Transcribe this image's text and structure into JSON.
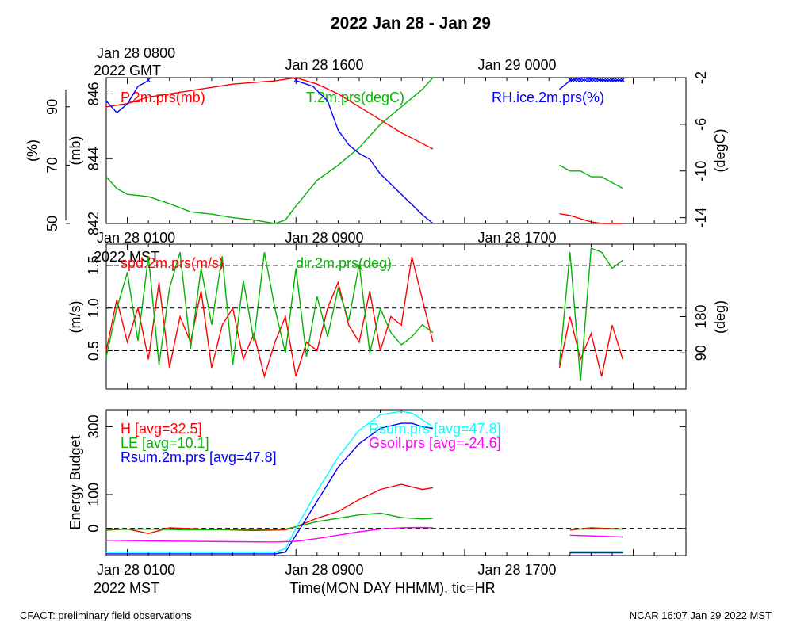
{
  "title": "2022 Jan 28 - Jan 29",
  "footer_left": "CFACT: preliminary field observations",
  "footer_right": "NCAR 16:07 Jan 29 2022 MST",
  "xlabel": "Time(MON DAY HHMM), tic=HR",
  "top_axis_labels": {
    "gmt_ticks": [
      "Jan 28 0800",
      "Jan 28 1600",
      "Jan 29 0000"
    ],
    "gmt_year": "2022 GMT"
  },
  "mst_axis_labels": {
    "ticks": [
      "Jan 28 0100",
      "Jan 28 0900",
      "Jan 28 1700"
    ],
    "year": "2022 MST"
  },
  "colors": {
    "red": "#ff0000",
    "green": "#00b400",
    "blue": "#0000ff",
    "cyan": "#00ffff",
    "magenta": "#ff00ff"
  },
  "chart_data": [
    {
      "type": "line",
      "panel": "pressure-temperature-rh",
      "x_unit": "hours since Jan 28 0000 MST",
      "xlim": [
        0,
        27.5
      ],
      "axes": [
        {
          "label": "(%)",
          "side": "left-outer",
          "ticks": [
            50,
            70,
            90
          ],
          "ylim": [
            50,
            100
          ]
        },
        {
          "label": "(mb)",
          "side": "left-inner",
          "ticks": [
            842,
            844,
            846
          ],
          "ylim": [
            842,
            846.5
          ]
        },
        {
          "label": "(degC)",
          "side": "right",
          "ticks": [
            -14,
            -10,
            -6,
            -2
          ],
          "ylim": [
            -14.5,
            -2
          ]
        }
      ],
      "series": [
        {
          "name": "P.2m.prs(mb)",
          "color": "#ff0000",
          "axis": 1,
          "x": [
            0,
            1,
            2,
            3,
            4,
            5,
            6,
            7,
            8,
            9,
            9.5,
            10,
            11,
            12,
            13,
            14,
            15.5,
            21.5,
            22,
            22.5,
            23,
            23.5,
            24,
            24.5
          ],
          "y": [
            845.6,
            845.7,
            845.9,
            846.0,
            846.1,
            846.2,
            846.3,
            846.35,
            846.4,
            846.5,
            846.4,
            846.3,
            846.0,
            845.6,
            845.2,
            844.8,
            844.3,
            842.3,
            842.25,
            842.15,
            842.05,
            841.95,
            841.85,
            841.8
          ]
        },
        {
          "name": "T.2m.prs(degC)",
          "color": "#00b400",
          "axis": 2,
          "x": [
            0,
            0.5,
            1,
            2,
            3,
            4,
            5,
            6,
            7,
            8,
            8.5,
            9,
            10,
            11,
            12,
            13,
            14,
            15,
            15.5,
            21.5,
            22,
            22.5,
            23,
            23.5,
            24,
            24.5
          ],
          "y": [
            -10.5,
            -11.5,
            -12,
            -12.2,
            -12.8,
            -13.5,
            -13.7,
            -14.0,
            -14.2,
            -14.5,
            -14.2,
            -13,
            -10.8,
            -9.5,
            -8,
            -6,
            -4.5,
            -3,
            -2,
            -9.5,
            -10,
            -10,
            -10.5,
            -10.5,
            -11,
            -11.5
          ]
        },
        {
          "name": "RH.ice.2m.prs(%)",
          "color": "#0000ff",
          "axis": 0,
          "x": [
            0,
            0.5,
            1,
            1.5,
            2,
            9,
            9.8,
            10.5,
            11,
            11.5,
            12,
            12.5,
            13,
            14,
            15,
            15.5,
            21.5,
            22,
            22.5,
            23,
            23.5,
            24,
            24.5
          ],
          "y": [
            92,
            88,
            91,
            97,
            99,
            99,
            97,
            92,
            82,
            77,
            74,
            72,
            67,
            60,
            53,
            50,
            96,
            99,
            100,
            100,
            99,
            99,
            99
          ]
        }
      ],
      "legend": [
        "P.2m.prs(mb)",
        "T.2m.prs(degC)",
        "RH.ice.2m.prs(%)"
      ]
    },
    {
      "type": "line",
      "panel": "wind",
      "x_unit": "hours since Jan 28 0000 MST",
      "xlim": [
        0,
        27.5
      ],
      "axes": [
        {
          "label": "(m/s)",
          "side": "left",
          "ticks": [
            0.5,
            1.0,
            1.5
          ],
          "ylim": [
            0.05,
            1.75
          ]
        },
        {
          "label": "(deg)",
          "side": "right",
          "ticks": [
            90,
            180
          ],
          "ylim": [
            0,
            360
          ]
        }
      ],
      "reference_lines_ms": [
        0.5,
        1.0,
        1.5
      ],
      "series": [
        {
          "name": "spd.2m.prs(m/s)",
          "color": "#ff0000",
          "axis": 0,
          "x": [
            0,
            0.5,
            1,
            1.5,
            2,
            2.5,
            3,
            3.5,
            4,
            4.5,
            5,
            5.5,
            6,
            6.5,
            7,
            7.5,
            8,
            8.5,
            9,
            9.5,
            10,
            10.5,
            11,
            11.5,
            12,
            12.5,
            13,
            13.5,
            14,
            14.5,
            15,
            15.5,
            21.5,
            22,
            22.5,
            23,
            23.5,
            24,
            24.5
          ],
          "y": [
            0.5,
            1.1,
            0.6,
            1.0,
            0.4,
            1.3,
            0.3,
            0.9,
            0.6,
            1.2,
            0.3,
            0.8,
            1.0,
            0.4,
            0.7,
            0.2,
            0.6,
            0.9,
            0.2,
            0.6,
            0.5,
            1.0,
            1.3,
            0.8,
            0.6,
            1.2,
            0.5,
            0.9,
            0.8,
            1.6,
            1.1,
            0.6,
            0.3,
            0.9,
            0.4,
            0.7,
            0.2,
            0.8,
            0.4
          ]
        },
        {
          "name": "dir.2m.prs(deg)",
          "color": "#00b400",
          "axis": 1,
          "x": [
            0,
            0.5,
            1,
            1.5,
            2,
            2.5,
            3,
            3.5,
            4,
            4.5,
            5,
            5.5,
            6,
            6.5,
            7,
            7.5,
            8,
            8.5,
            9,
            9.5,
            10,
            10.5,
            11,
            11.5,
            12,
            12.5,
            13,
            13.5,
            14,
            14.5,
            15,
            15.5,
            21.5,
            22,
            22.5,
            23,
            23.5,
            24,
            24.5
          ],
          "y": [
            80,
            200,
            290,
            120,
            330,
            60,
            250,
            340,
            100,
            300,
            160,
            330,
            60,
            270,
            120,
            340,
            200,
            90,
            300,
            80,
            230,
            130,
            250,
            170,
            310,
            90,
            200,
            140,
            110,
            130,
            160,
            140,
            60,
            340,
            20,
            350,
            340,
            300,
            320
          ]
        }
      ],
      "legend": [
        "spd.2m.prs(m/s)",
        "dir.2m.prs(deg)"
      ]
    },
    {
      "type": "line",
      "panel": "energy-budget",
      "ylabel": "Energy Budget",
      "x_unit": "hours since Jan 28 0000 MST",
      "xlim": [
        0,
        27.5
      ],
      "ylim": [
        -80,
        350
      ],
      "yticks": [
        0,
        100,
        300
      ],
      "zero_line": true,
      "series": [
        {
          "name": "H",
          "avg_label": "H [avg=32.5]",
          "color": "#ff0000",
          "x": [
            0,
            1,
            2,
            3,
            5,
            7,
            8.5,
            9,
            10,
            11,
            12,
            13,
            14,
            15,
            15.5,
            22,
            23,
            24.5
          ],
          "y": [
            -5,
            -2,
            -15,
            2,
            -3,
            -6,
            -4,
            5,
            30,
            50,
            85,
            115,
            130,
            115,
            120,
            -5,
            2,
            -2
          ]
        },
        {
          "name": "LE",
          "avg_label": "LE [avg=10.1]",
          "color": "#00b400",
          "x": [
            0,
            2,
            4,
            6,
            8.5,
            9,
            10,
            11,
            12,
            13,
            14,
            15,
            15.5,
            22,
            24.5
          ],
          "y": [
            -3,
            -2,
            -4,
            -3,
            -2,
            5,
            20,
            30,
            40,
            45,
            32,
            28,
            30,
            -2,
            -2
          ]
        },
        {
          "name": "Rsum.2m.prs",
          "avg_label": "Rsum.2m.prs [avg=47.8]",
          "color": "#0000ff",
          "x": [
            0,
            2,
            4,
            6,
            8,
            8.5,
            9,
            10,
            11,
            12,
            13,
            14,
            14.5,
            15,
            15.5,
            22,
            24.5
          ],
          "y": [
            -75,
            -75,
            -75,
            -75,
            -75,
            -70,
            -20,
            80,
            180,
            250,
            295,
            310,
            310,
            300,
            295,
            -72,
            -72
          ]
        },
        {
          "name": "Rsum.prs",
          "avg_label": "Rsum.prs [avg=47.8]",
          "color": "#00ffff",
          "x": [
            0,
            2,
            4,
            6,
            8,
            8.5,
            9,
            10,
            11,
            12,
            13,
            14,
            14.5,
            15,
            15.5,
            22,
            24.5
          ],
          "y": [
            -70,
            -70,
            -70,
            -70,
            -70,
            -60,
            0,
            110,
            210,
            290,
            335,
            345,
            340,
            320,
            300,
            -68,
            -68
          ]
        },
        {
          "name": "Gsoil.prs",
          "avg_label": "Gsoil.prs [avg=-24.6]",
          "color": "#ff00ff",
          "x": [
            0,
            2,
            4,
            6,
            8,
            9,
            10,
            11,
            12,
            13,
            14,
            15,
            15.5,
            22,
            24.5
          ],
          "y": [
            -35,
            -37,
            -38,
            -39,
            -40,
            -38,
            -30,
            -20,
            -10,
            -2,
            2,
            3,
            2,
            -20,
            -25
          ]
        }
      ],
      "legend": [
        "H [avg=32.5]",
        "LE [avg=10.1]",
        "Rsum.2m.prs [avg=47.8]",
        "Rsum.prs [avg=47.8]",
        "Gsoil.prs [avg=-24.6]"
      ]
    }
  ]
}
